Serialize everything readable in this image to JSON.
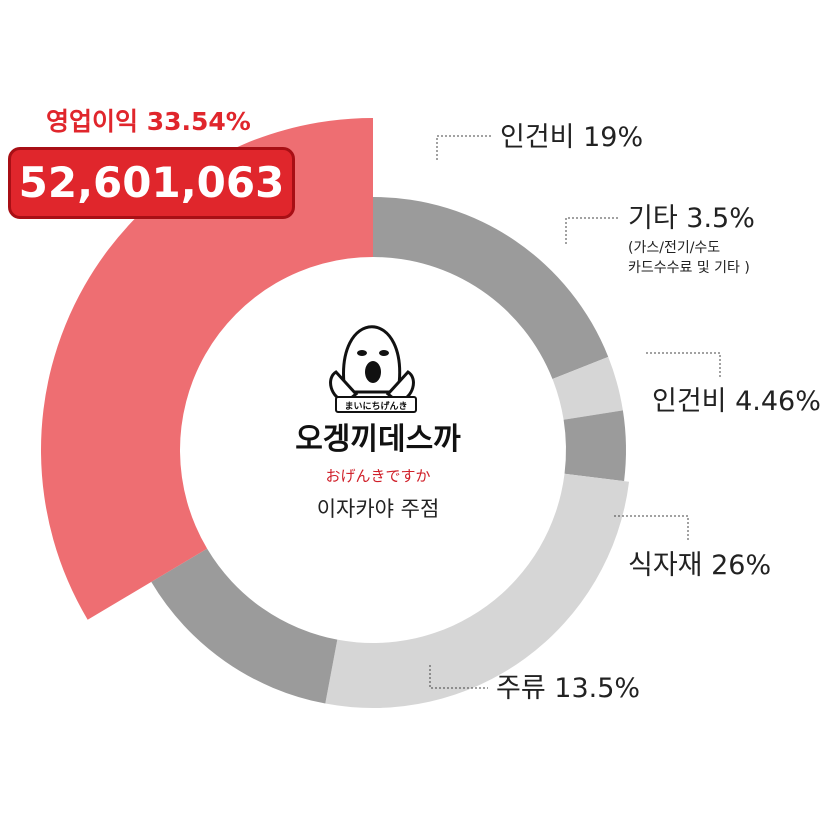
{
  "chart_data": {
    "type": "pie",
    "categories": [
      "인건비",
      "기타",
      "인건비",
      "식자재",
      "주류",
      "영업이익"
    ],
    "values": [
      19,
      3.5,
      4.46,
      26,
      13.5,
      33.54
    ],
    "labels": [
      {
        "name": "인건비",
        "value_text": "19%",
        "text": "인건비 19%",
        "color": "#9b9b9b"
      },
      {
        "name": "기타",
        "value_text": "3.5%",
        "text": "기타 3.5%",
        "sub": [
          "(가스/전기/수도",
          "카드수수료 및 기타 )"
        ],
        "color": "#d6d6d6"
      },
      {
        "name": "인건비",
        "value_text": "4.46%",
        "text": "인건비 4.46%",
        "color": "#9b9b9b"
      },
      {
        "name": "식자재",
        "value_text": "26%",
        "text": "식자재 26%",
        "color": "#d6d6d6"
      },
      {
        "name": "주류",
        "value_text": "13.5%",
        "text": "주류 13.5%",
        "color": "#9b9b9b"
      },
      {
        "name": "영업이익",
        "value_text": "33.54%",
        "text": "영업이익 33.54%",
        "color": "#ee6e72"
      }
    ],
    "highlight": {
      "title": "영업이익 33.54%",
      "amount": "52,601,063"
    }
  },
  "center": {
    "brand": "오겡끼데스까",
    "badge_text": "まいにちげんき",
    "japanese": "おげんきですか",
    "subtitle": "이자카야 주점"
  },
  "colors": {
    "accent": "#e0262c",
    "dark_gray": "#9b9b9b",
    "light_gray": "#d6d6d6",
    "highlight_segment": "#ee6e72"
  }
}
